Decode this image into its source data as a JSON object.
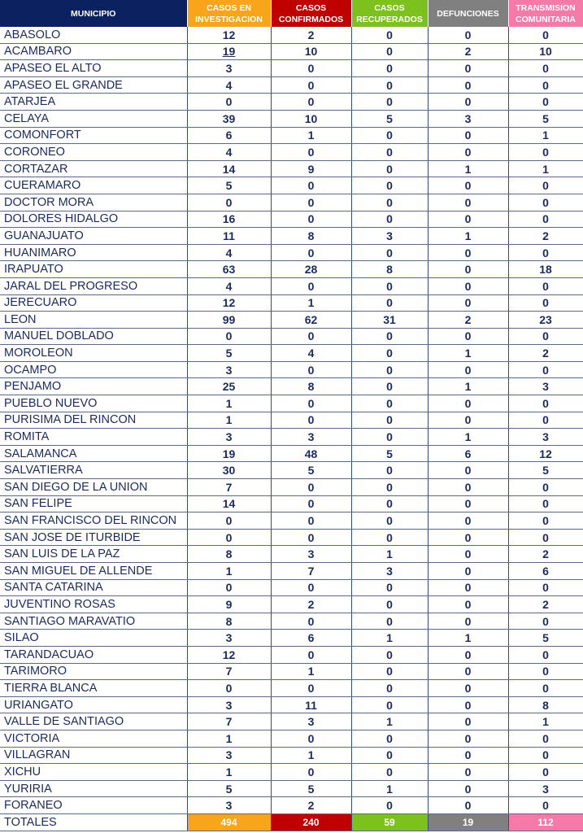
{
  "colors": {
    "header": "#0b2160",
    "investigacion": "#f9a51b",
    "confirmados": "#c00000",
    "recuperados": "#7dc11f",
    "defunciones": "#808080",
    "comunitaria": "#f57aa8"
  },
  "headers": [
    "MUNICIPIO",
    "CASOS EN INVESTIGACION",
    "CASOS CONFIRMADOS",
    "CASOS RECUPERADOS",
    "DEFUNCIONES",
    "TRANSMISION COMUNITARIA"
  ],
  "rows": [
    [
      "ABASOLO",
      "12",
      "2",
      "0",
      "0",
      "0"
    ],
    [
      "ACAMBARO",
      "19",
      "10",
      "0",
      "2",
      "10"
    ],
    [
      "APASEO EL ALTO",
      "3",
      "0",
      "0",
      "0",
      "0"
    ],
    [
      "APASEO EL GRANDE",
      "4",
      "0",
      "0",
      "0",
      "0"
    ],
    [
      "ATARJEA",
      "0",
      "0",
      "0",
      "0",
      "0"
    ],
    [
      "CELAYA",
      "39",
      "10",
      "5",
      "3",
      "5"
    ],
    [
      "COMONFORT",
      "6",
      "1",
      "0",
      "0",
      "1"
    ],
    [
      "CORONEO",
      "4",
      "0",
      "0",
      "0",
      "0"
    ],
    [
      "CORTAZAR",
      "14",
      "9",
      "0",
      "1",
      "1"
    ],
    [
      "CUERAMARO",
      "5",
      "0",
      "0",
      "0",
      "0"
    ],
    [
      "DOCTOR MORA",
      "0",
      "0",
      "0",
      "0",
      "0"
    ],
    [
      "DOLORES HIDALGO",
      "16",
      "0",
      "0",
      "0",
      "0"
    ],
    [
      "GUANAJUATO",
      "11",
      "8",
      "3",
      "1",
      "2"
    ],
    [
      "HUANIMARO",
      "4",
      "0",
      "0",
      "0",
      "0"
    ],
    [
      "IRAPUATO",
      "63",
      "28",
      "8",
      "0",
      "18"
    ],
    [
      "JARAL DEL PROGRESO",
      "4",
      "0",
      "0",
      "0",
      "0"
    ],
    [
      "JERECUARO",
      "12",
      "1",
      "0",
      "0",
      "0"
    ],
    [
      "LEON",
      "99",
      "62",
      "31",
      "2",
      "23"
    ],
    [
      "MANUEL DOBLADO",
      "0",
      "0",
      "0",
      "0",
      "0"
    ],
    [
      "MOROLEON",
      "5",
      "4",
      "0",
      "1",
      "2"
    ],
    [
      "OCAMPO",
      "3",
      "0",
      "0",
      "0",
      "0"
    ],
    [
      "PENJAMO",
      "25",
      "8",
      "0",
      "1",
      "3"
    ],
    [
      "PUEBLO NUEVO",
      "1",
      "0",
      "0",
      "0",
      "0"
    ],
    [
      "PURISIMA DEL RINCON",
      "1",
      "0",
      "0",
      "0",
      "0"
    ],
    [
      "ROMITA",
      "3",
      "3",
      "0",
      "1",
      "3"
    ],
    [
      "SALAMANCA",
      "19",
      "48",
      "5",
      "6",
      "12"
    ],
    [
      "SALVATIERRA",
      "30",
      "5",
      "0",
      "0",
      "5"
    ],
    [
      "SAN DIEGO DE LA UNION",
      "7",
      "0",
      "0",
      "0",
      "0"
    ],
    [
      "SAN FELIPE",
      "14",
      "0",
      "0",
      "0",
      "0"
    ],
    [
      "SAN FRANCISCO DEL RINCON",
      "0",
      "0",
      "0",
      "0",
      "0"
    ],
    [
      "SAN JOSE DE ITURBIDE",
      "0",
      "0",
      "0",
      "0",
      "0"
    ],
    [
      "SAN LUIS DE LA PAZ",
      "8",
      "3",
      "1",
      "0",
      "2"
    ],
    [
      "SAN MIGUEL DE ALLENDE",
      "1",
      "7",
      "3",
      "0",
      "6"
    ],
    [
      "SANTA CATARINA",
      "0",
      "0",
      "0",
      "0",
      "0"
    ],
    [
      "JUVENTINO ROSAS",
      "9",
      "2",
      "0",
      "0",
      "2"
    ],
    [
      "SANTIAGO MARAVATIO",
      "8",
      "0",
      "0",
      "0",
      "0"
    ],
    [
      "SILAO",
      "3",
      "6",
      "1",
      "1",
      "5"
    ],
    [
      "TARANDACUAO",
      "12",
      "0",
      "0",
      "0",
      "0"
    ],
    [
      "TARIMORO",
      "7",
      "1",
      "0",
      "0",
      "0"
    ],
    [
      "TIERRA BLANCA",
      "0",
      "0",
      "0",
      "0",
      "0"
    ],
    [
      "URIANGATO",
      "3",
      "11",
      "0",
      "0",
      "8"
    ],
    [
      "VALLE DE SANTIAGO",
      "7",
      "3",
      "1",
      "0",
      "1"
    ],
    [
      "VICTORIA",
      "1",
      "0",
      "0",
      "0",
      "0"
    ],
    [
      "VILLAGRAN",
      "3",
      "1",
      "0",
      "0",
      "0"
    ],
    [
      "XICHU",
      "1",
      "0",
      "0",
      "0",
      "0"
    ],
    [
      "YURIRIA",
      "5",
      "5",
      "1",
      "0",
      "3"
    ],
    [
      "FORANEO",
      "3",
      "2",
      "0",
      "0",
      "0"
    ]
  ],
  "totals": [
    "TOTALES",
    "494",
    "240",
    "59",
    "19",
    "112"
  ]
}
